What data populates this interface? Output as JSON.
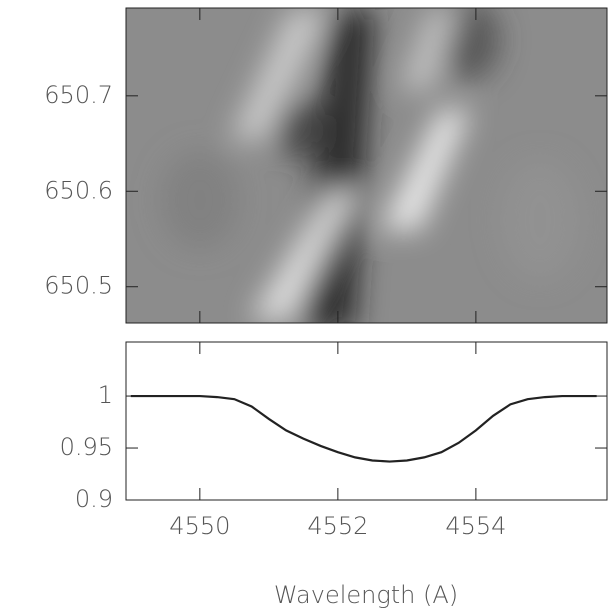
{
  "chart_data": [
    {
      "type": "image",
      "xlim": [
        4548.93,
        4555.9
      ],
      "xticks": [
        4550,
        4552,
        4554
      ],
      "ylim": [
        650.462,
        650.792
      ],
      "yticks": [
        650.5,
        650.6,
        650.7
      ]
    },
    {
      "type": "line",
      "xlabel": "Wavelength (A)",
      "color": "#222222",
      "x": [
        4549,
        4549.25,
        4549.5,
        4549.75,
        4550,
        4550.25,
        4550.5,
        4550.75,
        4551,
        4551.25,
        4551.5,
        4551.75,
        4552,
        4552.25,
        4552.5,
        4552.75,
        4553,
        4553.25,
        4553.5,
        4553.75,
        4554,
        4554.25,
        4554.5,
        4554.75,
        4555,
        4555.25,
        4555.5,
        4555.75
      ],
      "values": [
        1.0,
        1.0,
        1.0,
        1.0,
        1.0,
        0.999,
        0.997,
        0.99,
        0.978,
        0.967,
        0.959,
        0.952,
        0.946,
        0.941,
        0.938,
        0.937,
        0.938,
        0.941,
        0.946,
        0.955,
        0.967,
        0.981,
        0.992,
        0.997,
        0.999,
        1.0,
        1.0,
        1.0
      ],
      "xlim": [
        4548.93,
        4555.9
      ],
      "xticks": [
        4550,
        4552,
        4554
      ],
      "ylim": [
        0.9,
        1.052
      ],
      "yticks": [
        0.9,
        0.95,
        1
      ]
    }
  ]
}
